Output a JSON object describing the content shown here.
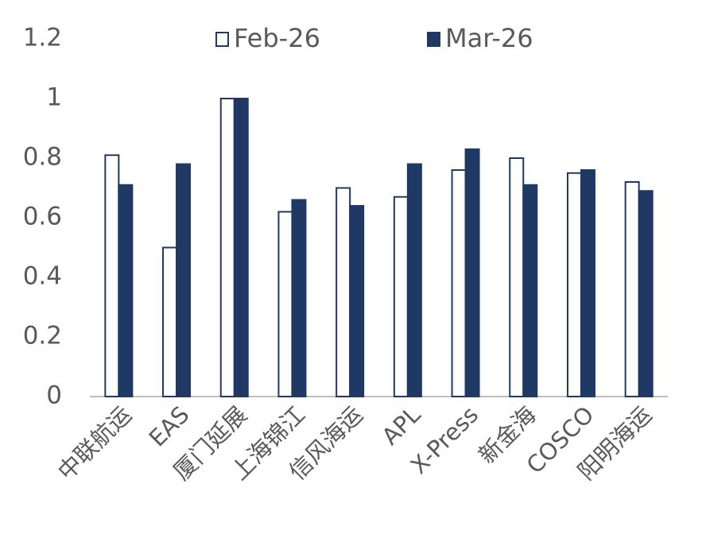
{
  "chart_data": {
    "type": "bar",
    "categories": [
      "中联航运",
      "EAS",
      "厦门延展",
      "上海锦江",
      "信风海运",
      "APL",
      "X-Press",
      "新金海",
      "COSCO",
      "阳明海运"
    ],
    "series": [
      {
        "name": "Feb-26",
        "color": "#ffffff",
        "values": [
          0.81,
          0.5,
          1.0,
          0.62,
          0.7,
          0.67,
          0.76,
          0.8,
          0.75,
          0.72
        ]
      },
      {
        "name": "Mar-26",
        "color": "#1f3864",
        "values": [
          0.71,
          0.78,
          1.0,
          0.66,
          0.64,
          0.78,
          0.83,
          0.71,
          0.76,
          0.69
        ]
      }
    ],
    "edge_color": "#1f3864",
    "ylim": [
      0,
      1.2
    ],
    "yticks": [
      0,
      0.2,
      0.4,
      0.6,
      0.8,
      1,
      1.2
    ],
    "grid": false,
    "legend": "top"
  }
}
